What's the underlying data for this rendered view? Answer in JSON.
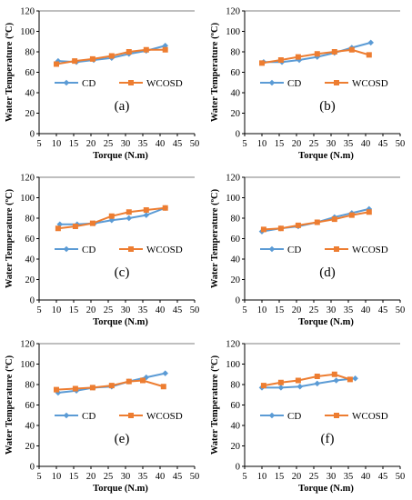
{
  "figure": {
    "ylabel": "Water Temperature (ºC)",
    "xlabel": "Torque (N.m)"
  },
  "style": {
    "cd_color": "#5B9BD5",
    "wcosd_color": "#ED7D31",
    "cd_marker": "diamond",
    "wcosd_marker": "square",
    "grid": false,
    "legend_placement": "lower-center"
  },
  "chart_data": [
    {
      "type": "line",
      "panel_label": "(a)",
      "x_ticks": [
        5,
        10,
        15,
        20,
        25,
        30,
        35,
        40,
        45,
        50
      ],
      "y_ticks": [
        0,
        20,
        40,
        60,
        80,
        100,
        120
      ],
      "xlim": [
        5,
        50
      ],
      "ylim": [
        0,
        120
      ],
      "xlabel": "Torque (N.m)",
      "ylabel": "Water Temperature (ºC)",
      "series": [
        {
          "name": "CD",
          "x": [
            10.5,
            15.8,
            20.8,
            26.0,
            31.0,
            36.0,
            41.5
          ],
          "y": [
            71,
            70,
            72,
            74,
            78,
            81,
            86
          ]
        },
        {
          "name": "WCOSD",
          "x": [
            10.0,
            15.3,
            20.5,
            26.0,
            31.0,
            36.0,
            41.5
          ],
          "y": [
            68,
            71,
            73,
            76,
            80,
            82,
            82
          ]
        }
      ]
    },
    {
      "type": "line",
      "panel_label": "(b)",
      "x_ticks": [
        5,
        10,
        15,
        20,
        25,
        30,
        35,
        40,
        45,
        50
      ],
      "y_ticks": [
        0,
        20,
        40,
        60,
        80,
        100,
        120
      ],
      "xlim": [
        5,
        50
      ],
      "ylim": [
        0,
        120
      ],
      "xlabel": "Torque (N.m)",
      "ylabel": "Water Temperature (ºC)",
      "series": [
        {
          "name": "CD",
          "x": [
            10.5,
            15.8,
            20.8,
            26.0,
            31.0,
            36.0,
            41.5
          ],
          "y": [
            70,
            70,
            72,
            75,
            79,
            84,
            89
          ]
        },
        {
          "name": "WCOSD",
          "x": [
            10.0,
            15.5,
            20.5,
            26.0,
            31.0,
            36.0,
            41.0
          ],
          "y": [
            69,
            72,
            75,
            78,
            80,
            82,
            77
          ]
        }
      ]
    },
    {
      "type": "line",
      "panel_label": "(c)",
      "x_ticks": [
        5,
        10,
        15,
        20,
        25,
        30,
        35,
        40,
        45,
        50
      ],
      "y_ticks": [
        0,
        20,
        40,
        60,
        80,
        100,
        120
      ],
      "xlim": [
        5,
        50
      ],
      "ylim": [
        0,
        120
      ],
      "xlabel": "Torque (N.m)",
      "ylabel": "Water Temperature (ºC)",
      "series": [
        {
          "name": "CD",
          "x": [
            11.0,
            16.0,
            21.0,
            26.0,
            31.0,
            36.0,
            41.5
          ],
          "y": [
            74,
            74,
            75,
            78,
            80,
            83,
            90
          ]
        },
        {
          "name": "WCOSD",
          "x": [
            10.5,
            15.5,
            20.5,
            26.0,
            31.0,
            36.0,
            41.5
          ],
          "y": [
            70,
            72,
            75,
            82,
            86,
            88,
            90
          ]
        }
      ]
    },
    {
      "type": "line",
      "panel_label": "(d)",
      "x_ticks": [
        5,
        10,
        15,
        20,
        25,
        30,
        35,
        40,
        45,
        50
      ],
      "y_ticks": [
        0,
        20,
        40,
        60,
        80,
        100,
        120
      ],
      "xlim": [
        5,
        50
      ],
      "ylim": [
        0,
        120
      ],
      "xlabel": "Torque (N.m)",
      "ylabel": "Water Temperature (ºC)",
      "series": [
        {
          "name": "CD",
          "x": [
            10.0,
            15.3,
            20.5,
            26.0,
            31.0,
            36.0,
            41.0
          ],
          "y": [
            67,
            70,
            72,
            76,
            81,
            85,
            89
          ]
        },
        {
          "name": "WCOSD",
          "x": [
            10.5,
            15.5,
            20.5,
            26.0,
            31.0,
            36.0,
            41.0
          ],
          "y": [
            69,
            70,
            73,
            76,
            79,
            83,
            86
          ]
        }
      ]
    },
    {
      "type": "line",
      "panel_label": "(e)",
      "x_ticks": [
        5,
        10,
        15,
        20,
        25,
        30,
        35,
        40,
        45,
        50
      ],
      "y_ticks": [
        0,
        20,
        40,
        60,
        80,
        100,
        120
      ],
      "xlim": [
        5,
        50
      ],
      "ylim": [
        0,
        120
      ],
      "xlabel": "Torque (N.m)",
      "ylabel": "Water Temperature (ºC)",
      "series": [
        {
          "name": "CD",
          "x": [
            10.5,
            15.8,
            20.8,
            26.0,
            31.0,
            36.0,
            41.5
          ],
          "y": [
            72,
            74,
            77,
            78,
            83,
            87,
            91
          ]
        },
        {
          "name": "WCOSD",
          "x": [
            10.0,
            15.5,
            20.5,
            26.0,
            31.0,
            35.0,
            41.0
          ],
          "y": [
            75,
            76,
            77,
            79,
            83,
            84,
            78
          ]
        }
      ]
    },
    {
      "type": "line",
      "panel_label": "(f)",
      "x_ticks": [
        5,
        10,
        15,
        20,
        25,
        30,
        35,
        40,
        45,
        50
      ],
      "y_ticks": [
        0,
        20,
        40,
        60,
        80,
        100,
        120
      ],
      "xlim": [
        5,
        50
      ],
      "ylim": [
        0,
        120
      ],
      "xlabel": "Torque (N.m)",
      "ylabel": "Water Temperature (ºC)",
      "series": [
        {
          "name": "CD",
          "x": [
            10.0,
            15.5,
            21.0,
            26.0,
            31.5,
            37.0
          ],
          "y": [
            77,
            77,
            78,
            81,
            84,
            86
          ]
        },
        {
          "name": "WCOSD",
          "x": [
            10.5,
            15.5,
            20.5,
            26.0,
            31.0,
            35.5
          ],
          "y": [
            79,
            82,
            84,
            88,
            90,
            85
          ]
        }
      ]
    }
  ]
}
